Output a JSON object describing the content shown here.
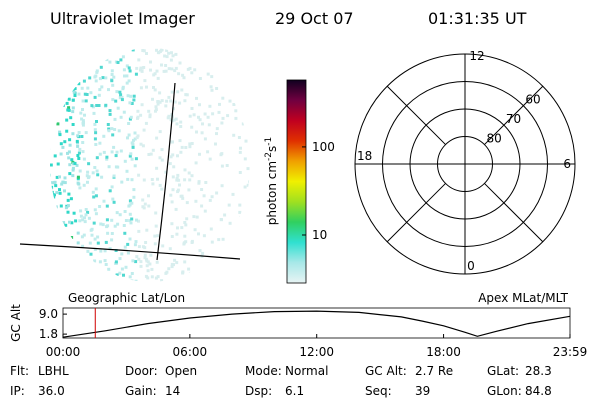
{
  "header": {
    "title": "Ultraviolet Imager",
    "date": "29 Oct 07",
    "time": "01:31:35 UT"
  },
  "image_panel": {
    "label": "Geographic Lat/Lon"
  },
  "colorbar": {
    "label": [
      "photon cm",
      "-2",
      "s",
      "-1"
    ],
    "log": true,
    "lim": [
      2.85,
      575
    ],
    "ticks": [
      10,
      100
    ],
    "colors": [
      "#e8f4f4",
      "#a8e8e8",
      "#30e0d0",
      "#30d060",
      "#a0e020",
      "#f0f000",
      "#f0a000",
      "#e03000",
      "#c00020",
      "#700040",
      "#100020"
    ]
  },
  "polar": {
    "label": "Apex MLat/MLT",
    "mlt_labels": [
      "12",
      "6",
      "0",
      "18"
    ],
    "lat_lim": [
      90,
      50
    ],
    "lat_ticks": [
      60,
      70,
      80
    ]
  },
  "chart_data": {
    "type": "line",
    "ylabel": "GC Alt",
    "x": [
      0,
      2,
      4,
      6,
      8,
      10,
      12,
      14,
      16,
      17,
      18,
      19,
      19.6,
      20.5,
      22,
      23.98
    ],
    "values": [
      0.7,
      3.0,
      5.6,
      7.6,
      9.0,
      9.9,
      10.1,
      9.6,
      8.0,
      6.5,
      4.8,
      2.5,
      1.0,
      2.8,
      5.6,
      8.2
    ],
    "color": "#000000",
    "marker": 1.526,
    "marker_color": "#d00000",
    "xlim": [
      0,
      23.98
    ],
    "xticks": [
      {
        "value": 0,
        "label": "00:00"
      },
      {
        "value": 6,
        "label": "06:00"
      },
      {
        "value": 12,
        "label": "12:00"
      },
      {
        "value": 18,
        "label": "18:00"
      },
      {
        "value": 23.98,
        "label": "23:59"
      }
    ],
    "ylim": [
      0.4,
      11.2
    ],
    "yticks": [
      1.8,
      {
        "value": 9,
        "label": "9.0"
      }
    ]
  },
  "footer": {
    "rows": [
      [
        [
          "Flt:",
          "LBHL"
        ],
        [
          "Door:",
          "Open"
        ],
        [
          "Mode:",
          "Normal"
        ],
        [
          "GC Alt:",
          "2.7 Re"
        ],
        [
          "GLat:",
          "28.3"
        ]
      ],
      [
        [
          "IP:",
          "36.0"
        ],
        [
          "Gain:",
          "14"
        ],
        [
          "Dsp:",
          "6.1"
        ],
        [
          "Seq:",
          "39"
        ],
        [
          "GLon:",
          "84.8"
        ]
      ]
    ]
  }
}
